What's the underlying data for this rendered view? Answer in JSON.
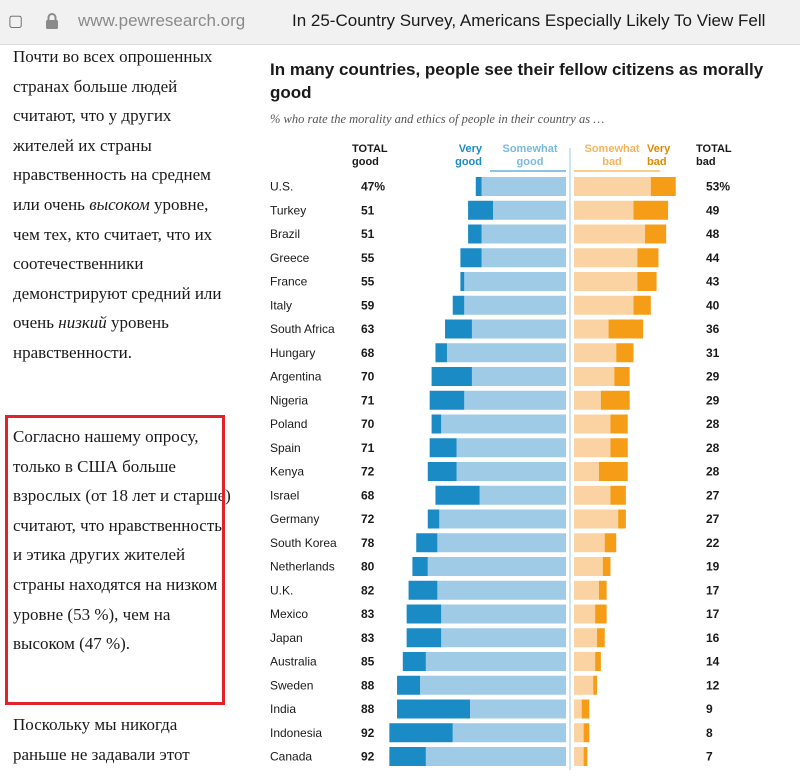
{
  "browser": {
    "domain": "www.pewresearch.org",
    "page_title": "In 25-Country Survey, Americans Especially Likely To View Fell"
  },
  "article": {
    "p1_a": "Почти во всех опрошенных странах больше людей считают, что у других жителей их страны нравственность на среднем или очень ",
    "p1_em1": "высоком",
    "p1_b": " уровне, чем тех, кто считает, что их соотечественники демонстрируют средний или очень ",
    "p1_em2": "низкий",
    "p1_c": " уровень нравственности.",
    "p2": "Согласно нашему опросу, только в США больше взрослых (от 18 лет и старше) считают, что нравственность и этика других жителей страны находятся на низком уровне (53 %), чем на высоком (47 %).",
    "p3": "Поскольку мы никогда раньше не задавали этот"
  },
  "chart_data": {
    "type": "bar",
    "title": "In many countries, people see their fellow citizens as morally good",
    "subtitle": "% who rate the morality and ethics of people in their country as …",
    "headers": {
      "total_good_1": "TOTAL",
      "total_good_2": "good",
      "very_good_1": "Very",
      "very_good_2": "good",
      "somewhat_good_1": "Somewhat",
      "somewhat_good_2": "good",
      "somewhat_bad_1": "Somewhat",
      "somewhat_bad_2": "bad",
      "very_bad_1": "Very",
      "very_bad_2": "bad",
      "total_bad_1": "TOTAL",
      "total_bad_2": "bad"
    },
    "colors": {
      "very_good": "#1a8bc5",
      "somewhat_good": "#9fcbe6",
      "somewhat_bad": "#fbd3a2",
      "very_bad": "#f59d17"
    },
    "rows": [
      {
        "country": "U.S.",
        "total_good": "47%",
        "very_good": 3,
        "somewhat_good": 44,
        "somewhat_bad": 40,
        "very_bad": 13,
        "total_bad": "53%"
      },
      {
        "country": "Turkey",
        "total_good": "51",
        "very_good": 13,
        "somewhat_good": 38,
        "somewhat_bad": 31,
        "very_bad": 18,
        "total_bad": "49"
      },
      {
        "country": "Brazil",
        "total_good": "51",
        "very_good": 7,
        "somewhat_good": 44,
        "somewhat_bad": 37,
        "very_bad": 11,
        "total_bad": "48"
      },
      {
        "country": "Greece",
        "total_good": "55",
        "very_good": 11,
        "somewhat_good": 44,
        "somewhat_bad": 33,
        "very_bad": 11,
        "total_bad": "44"
      },
      {
        "country": "France",
        "total_good": "55",
        "very_good": 2,
        "somewhat_good": 53,
        "somewhat_bad": 33,
        "very_bad": 10,
        "total_bad": "43"
      },
      {
        "country": "Italy",
        "total_good": "59",
        "very_good": 6,
        "somewhat_good": 53,
        "somewhat_bad": 31,
        "very_bad": 9,
        "total_bad": "40"
      },
      {
        "country": "South Africa",
        "total_good": "63",
        "very_good": 14,
        "somewhat_good": 49,
        "somewhat_bad": 18,
        "very_bad": 18,
        "total_bad": "36"
      },
      {
        "country": "Hungary",
        "total_good": "68",
        "very_good": 6,
        "somewhat_good": 62,
        "somewhat_bad": 22,
        "very_bad": 9,
        "total_bad": "31"
      },
      {
        "country": "Argentina",
        "total_good": "70",
        "very_good": 21,
        "somewhat_good": 49,
        "somewhat_bad": 21,
        "very_bad": 8,
        "total_bad": "29"
      },
      {
        "country": "Nigeria",
        "total_good": "71",
        "very_good": 18,
        "somewhat_good": 53,
        "somewhat_bad": 14,
        "very_bad": 15,
        "total_bad": "29"
      },
      {
        "country": "Poland",
        "total_good": "70",
        "very_good": 5,
        "somewhat_good": 65,
        "somewhat_bad": 19,
        "very_bad": 9,
        "total_bad": "28"
      },
      {
        "country": "Spain",
        "total_good": "71",
        "very_good": 14,
        "somewhat_good": 57,
        "somewhat_bad": 19,
        "very_bad": 9,
        "total_bad": "28"
      },
      {
        "country": "Kenya",
        "total_good": "72",
        "very_good": 15,
        "somewhat_good": 57,
        "somewhat_bad": 13,
        "very_bad": 15,
        "total_bad": "28"
      },
      {
        "country": "Israel",
        "total_good": "68",
        "very_good": 23,
        "somewhat_good": 45,
        "somewhat_bad": 19,
        "very_bad": 8,
        "total_bad": "27"
      },
      {
        "country": "Germany",
        "total_good": "72",
        "very_good": 6,
        "somewhat_good": 66,
        "somewhat_bad": 23,
        "very_bad": 4,
        "total_bad": "27"
      },
      {
        "country": "South Korea",
        "total_good": "78",
        "very_good": 11,
        "somewhat_good": 67,
        "somewhat_bad": 16,
        "very_bad": 6,
        "total_bad": "22"
      },
      {
        "country": "Netherlands",
        "total_good": "80",
        "very_good": 8,
        "somewhat_good": 72,
        "somewhat_bad": 15,
        "very_bad": 4,
        "total_bad": "19"
      },
      {
        "country": "U.K.",
        "total_good": "82",
        "very_good": 15,
        "somewhat_good": 67,
        "somewhat_bad": 13,
        "very_bad": 4,
        "total_bad": "17"
      },
      {
        "country": "Mexico",
        "total_good": "83",
        "very_good": 18,
        "somewhat_good": 65,
        "somewhat_bad": 11,
        "very_bad": 6,
        "total_bad": "17"
      },
      {
        "country": "Japan",
        "total_good": "83",
        "very_good": 18,
        "somewhat_good": 65,
        "somewhat_bad": 12,
        "very_bad": 4,
        "total_bad": "16"
      },
      {
        "country": "Australia",
        "total_good": "85",
        "very_good": 12,
        "somewhat_good": 73,
        "somewhat_bad": 11,
        "very_bad": 3,
        "total_bad": "14"
      },
      {
        "country": "Sweden",
        "total_good": "88",
        "very_good": 12,
        "somewhat_good": 76,
        "somewhat_bad": 10,
        "very_bad": 2,
        "total_bad": "12"
      },
      {
        "country": "India",
        "total_good": "88",
        "very_good": 38,
        "somewhat_good": 50,
        "somewhat_bad": 4,
        "very_bad": 4,
        "total_bad": "9"
      },
      {
        "country": "Indonesia",
        "total_good": "92",
        "very_good": 33,
        "somewhat_good": 59,
        "somewhat_bad": 5,
        "very_bad": 3,
        "total_bad": "8"
      },
      {
        "country": "Canada",
        "total_good": "92",
        "very_good": 19,
        "somewhat_good": 73,
        "somewhat_bad": 5,
        "very_bad": 2,
        "total_bad": "7"
      }
    ]
  }
}
